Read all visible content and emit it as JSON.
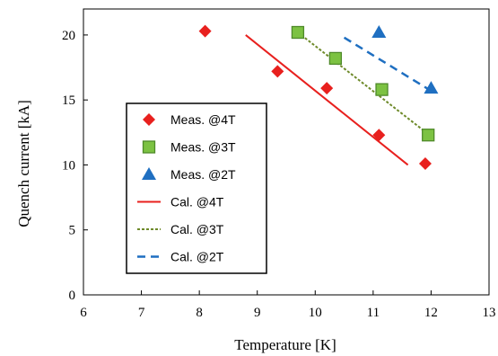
{
  "chart_data": {
    "type": "scatter",
    "xlabel": "Temperature [K]",
    "ylabel": "Quench current [kA]",
    "xlim": [
      6,
      13
    ],
    "ylim": [
      0,
      22
    ],
    "xticks": [
      "6",
      "7",
      "8",
      "9",
      "10",
      "11",
      "12",
      "13"
    ],
    "yticks": [
      "0",
      "5",
      "10",
      "15",
      "20"
    ],
    "grid": false,
    "legend_position": "left",
    "series": [
      {
        "name": "Meas. @4T",
        "kind": "marker",
        "marker": "diamond",
        "color": "#e8201e",
        "x": [
          8.1,
          9.35,
          10.2,
          11.1,
          11.9
        ],
        "y": [
          20.3,
          17.2,
          15.9,
          12.3,
          10.1
        ]
      },
      {
        "name": "Meas. @3T",
        "kind": "marker",
        "marker": "square",
        "color": "#7cc242",
        "x": [
          9.7,
          10.35,
          11.15,
          11.95
        ],
        "y": [
          20.2,
          18.2,
          15.8,
          12.3
        ]
      },
      {
        "name": "Meas. @2T",
        "kind": "marker",
        "marker": "triangle",
        "color": "#1f6fc1",
        "x": [
          11.1,
          12.0
        ],
        "y": [
          20.2,
          15.9
        ]
      },
      {
        "name": "Cal. @4T",
        "kind": "line",
        "dash": "solid",
        "color": "#e8201e",
        "x": [
          8.8,
          11.6
        ],
        "y": [
          20.0,
          10.0
        ]
      },
      {
        "name": "Cal. @3T",
        "kind": "line",
        "dash": "dotted",
        "color": "#6e8a2a",
        "x": [
          9.7,
          12.0
        ],
        "y": [
          20.2,
          12.2
        ]
      },
      {
        "name": "Cal. @2T",
        "kind": "line",
        "dash": "dashed",
        "color": "#1f6fc1",
        "x": [
          10.5,
          12.0
        ],
        "y": [
          19.8,
          15.7
        ]
      }
    ]
  }
}
